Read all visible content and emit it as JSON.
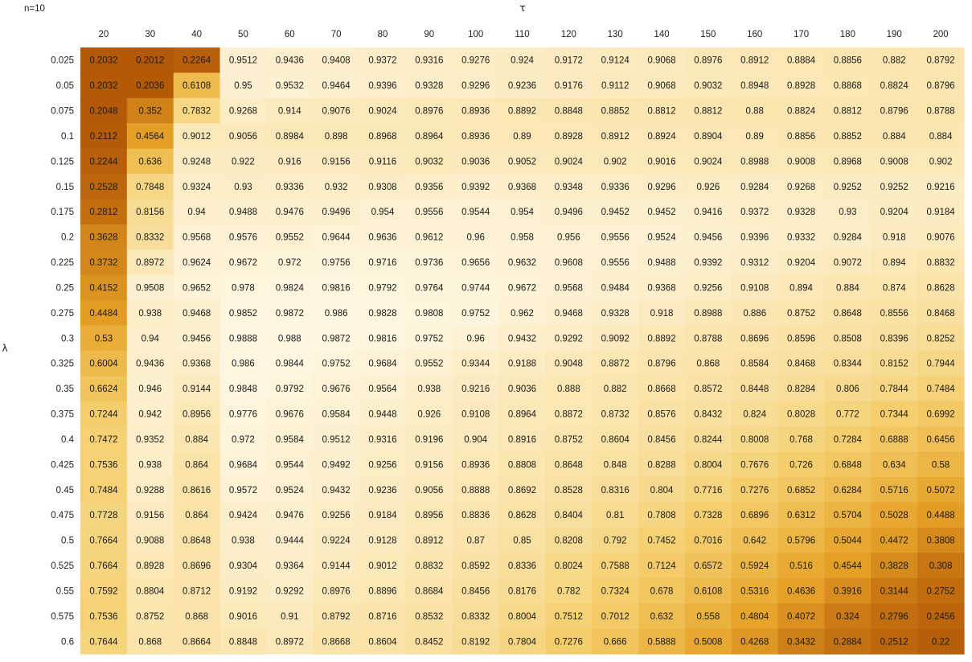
{
  "chart_data": {
    "type": "heatmap",
    "title": "n=10",
    "xlabel": "τ",
    "ylabel": "λ",
    "x": [
      20,
      30,
      40,
      50,
      60,
      70,
      80,
      90,
      100,
      110,
      120,
      130,
      140,
      150,
      160,
      170,
      180,
      190,
      200
    ],
    "x_labels": [
      "20",
      "30",
      "40",
      "50",
      "60",
      "70",
      "80",
      "90",
      "100",
      "110",
      "120",
      "130",
      "140",
      "150",
      "160",
      "170",
      "180",
      "190",
      "200"
    ],
    "y": [
      0.025,
      0.05,
      0.075,
      0.1,
      0.125,
      0.15,
      0.175,
      0.2,
      0.225,
      0.25,
      0.275,
      0.3,
      0.325,
      0.35,
      0.375,
      0.4,
      0.425,
      0.45,
      0.475,
      0.5,
      0.525,
      0.55,
      0.575,
      0.6
    ],
    "y_labels": [
      "0.025",
      "0.05",
      "0.075",
      "0.1",
      "0.125",
      "0.15",
      "0.175",
      "0.2",
      "0.225",
      "0.25",
      "0.275",
      "0.3",
      "0.325",
      "0.35",
      "0.375",
      "0.4",
      "0.425",
      "0.45",
      "0.475",
      "0.5",
      "0.525",
      "0.55",
      "0.575",
      "0.6"
    ],
    "cell_labels": [
      [
        "0.2032",
        "0.2012",
        "0.2264",
        "0.9512",
        "0.9436",
        "0.9408",
        "0.9372",
        "0.9316",
        "0.9276",
        "0.924",
        "0.9172",
        "0.9124",
        "0.9068",
        "0.8976",
        "0.8912",
        "0.8884",
        "0.8856",
        "0.882",
        "0.8792"
      ],
      [
        "0.2032",
        "0.2036",
        "0.6108",
        "0.95",
        "0.9532",
        "0.9464",
        "0.9396",
        "0.9328",
        "0.9296",
        "0.9236",
        "0.9176",
        "0.9112",
        "0.9068",
        "0.9032",
        "0.8948",
        "0.8928",
        "0.8868",
        "0.8824",
        "0.8796"
      ],
      [
        "0.2048",
        "0.352",
        "0.7832",
        "0.9268",
        "0.914",
        "0.9076",
        "0.9024",
        "0.8976",
        "0.8936",
        "0.8892",
        "0.8848",
        "0.8852",
        "0.8812",
        "0.8812",
        "0.88",
        "0.8824",
        "0.8812",
        "0.8796",
        "0.8788"
      ],
      [
        "0.2112",
        "0.4564",
        "0.9012",
        "0.9056",
        "0.8984",
        "0.898",
        "0.8968",
        "0.8964",
        "0.8936",
        "0.89",
        "0.8928",
        "0.8912",
        "0.8924",
        "0.8904",
        "0.89",
        "0.8856",
        "0.8852",
        "0.884",
        "0.884"
      ],
      [
        "0.2244",
        "0.636",
        "0.9248",
        "0.922",
        "0.916",
        "0.9156",
        "0.9116",
        "0.9032",
        "0.9036",
        "0.9052",
        "0.9024",
        "0.902",
        "0.9016",
        "0.9024",
        "0.8988",
        "0.9008",
        "0.8968",
        "0.9008",
        "0.902"
      ],
      [
        "0.2528",
        "0.7848",
        "0.9324",
        "0.93",
        "0.9336",
        "0.932",
        "0.9308",
        "0.9356",
        "0.9392",
        "0.9368",
        "0.9348",
        "0.9336",
        "0.9296",
        "0.926",
        "0.9284",
        "0.9268",
        "0.9252",
        "0.9252",
        "0.9216"
      ],
      [
        "0.2812",
        "0.8156",
        "0.94",
        "0.9488",
        "0.9476",
        "0.9496",
        "0.954",
        "0.9556",
        "0.9544",
        "0.954",
        "0.9496",
        "0.9452",
        "0.9452",
        "0.9416",
        "0.9372",
        "0.9328",
        "0.93",
        "0.9204",
        "0.9184"
      ],
      [
        "0.3628",
        "0.8332",
        "0.9568",
        "0.9576",
        "0.9552",
        "0.9644",
        "0.9636",
        "0.9612",
        "0.96",
        "0.958",
        "0.956",
        "0.9556",
        "0.9524",
        "0.9456",
        "0.9396",
        "0.9332",
        "0.9284",
        "0.918",
        "0.9076"
      ],
      [
        "0.3732",
        "0.8972",
        "0.9624",
        "0.9672",
        "0.972",
        "0.9756",
        "0.9716",
        "0.9736",
        "0.9656",
        "0.9632",
        "0.9608",
        "0.9556",
        "0.9488",
        "0.9392",
        "0.9312",
        "0.9204",
        "0.9072",
        "0.894",
        "0.8832"
      ],
      [
        "0.4152",
        "0.9508",
        "0.9652",
        "0.978",
        "0.9824",
        "0.9816",
        "0.9792",
        "0.9764",
        "0.9744",
        "0.9672",
        "0.9568",
        "0.9484",
        "0.9368",
        "0.9256",
        "0.9108",
        "0.894",
        "0.884",
        "0.874",
        "0.8628"
      ],
      [
        "0.4484",
        "0.938",
        "0.9468",
        "0.9852",
        "0.9872",
        "0.986",
        "0.9828",
        "0.9808",
        "0.9752",
        "0.962",
        "0.9468",
        "0.9328",
        "0.918",
        "0.8988",
        "0.886",
        "0.8752",
        "0.8648",
        "0.8556",
        "0.8468"
      ],
      [
        "0.53",
        "0.94",
        "0.9456",
        "0.9888",
        "0.988",
        "0.9872",
        "0.9816",
        "0.9752",
        "0.96",
        "0.9432",
        "0.9292",
        "0.9092",
        "0.8892",
        "0.8788",
        "0.8696",
        "0.8596",
        "0.8508",
        "0.8396",
        "0.8252"
      ],
      [
        "0.6004",
        "0.9436",
        "0.9368",
        "0.986",
        "0.9844",
        "0.9752",
        "0.9684",
        "0.9552",
        "0.9344",
        "0.9188",
        "0.9048",
        "0.8872",
        "0.8796",
        "0.868",
        "0.8584",
        "0.8468",
        "0.8344",
        "0.8152",
        "0.7944"
      ],
      [
        "0.6624",
        "0.946",
        "0.9144",
        "0.9848",
        "0.9792",
        "0.9676",
        "0.9564",
        "0.938",
        "0.9216",
        "0.9036",
        "0.888",
        "0.882",
        "0.8668",
        "0.8572",
        "0.8448",
        "0.8284",
        "0.806",
        "0.7844",
        "0.7484"
      ],
      [
        "0.7244",
        "0.942",
        "0.8956",
        "0.9776",
        "0.9676",
        "0.9584",
        "0.9448",
        "0.926",
        "0.9108",
        "0.8964",
        "0.8872",
        "0.8732",
        "0.8576",
        "0.8432",
        "0.824",
        "0.8028",
        "0.772",
        "0.7344",
        "0.6992"
      ],
      [
        "0.7472",
        "0.9352",
        "0.884",
        "0.972",
        "0.9584",
        "0.9512",
        "0.9316",
        "0.9196",
        "0.904",
        "0.8916",
        "0.8752",
        "0.8604",
        "0.8456",
        "0.8244",
        "0.8008",
        "0.768",
        "0.7284",
        "0.6888",
        "0.6456"
      ],
      [
        "0.7536",
        "0.938",
        "0.864",
        "0.9684",
        "0.9544",
        "0.9492",
        "0.9256",
        "0.9156",
        "0.8936",
        "0.8808",
        "0.8648",
        "0.848",
        "0.8288",
        "0.8004",
        "0.7676",
        "0.726",
        "0.6848",
        "0.634",
        "0.58"
      ],
      [
        "0.7484",
        "0.9288",
        "0.8616",
        "0.9572",
        "0.9524",
        "0.9432",
        "0.9236",
        "0.9056",
        "0.8888",
        "0.8692",
        "0.8528",
        "0.8316",
        "0.804",
        "0.7716",
        "0.7276",
        "0.6852",
        "0.6284",
        "0.5716",
        "0.5072"
      ],
      [
        "0.7728",
        "0.9156",
        "0.864",
        "0.9424",
        "0.9476",
        "0.9256",
        "0.9184",
        "0.8956",
        "0.8836",
        "0.8628",
        "0.8404",
        "0.81",
        "0.7808",
        "0.7328",
        "0.6896",
        "0.6312",
        "0.5704",
        "0.5028",
        "0.4488"
      ],
      [
        "0.7664",
        "0.9088",
        "0.8648",
        "0.938",
        "0.9444",
        "0.9224",
        "0.9128",
        "0.8912",
        "0.87",
        "0.85",
        "0.8208",
        "0.792",
        "0.7452",
        "0.7016",
        "0.642",
        "0.5796",
        "0.5044",
        "0.4472",
        "0.3808"
      ],
      [
        "0.7664",
        "0.8928",
        "0.8696",
        "0.9304",
        "0.9364",
        "0.9144",
        "0.9012",
        "0.8832",
        "0.8592",
        "0.8336",
        "0.8024",
        "0.7588",
        "0.7124",
        "0.6572",
        "0.5924",
        "0.516",
        "0.4544",
        "0.3828",
        "0.308"
      ],
      [
        "0.7592",
        "0.8804",
        "0.8712",
        "0.9192",
        "0.9292",
        "0.8976",
        "0.8896",
        "0.8684",
        "0.8456",
        "0.8176",
        "0.782",
        "0.7324",
        "0.678",
        "0.6108",
        "0.5316",
        "0.4636",
        "0.3916",
        "0.3144",
        "0.2752"
      ],
      [
        "0.7536",
        "0.8752",
        "0.868",
        "0.9016",
        "0.91",
        "0.8792",
        "0.8716",
        "0.8532",
        "0.8332",
        "0.8004",
        "0.7512",
        "0.7012",
        "0.632",
        "0.558",
        "0.4804",
        "0.4072",
        "0.324",
        "0.2796",
        "0.2456"
      ],
      [
        "0.7644",
        "0.868",
        "0.8664",
        "0.8848",
        "0.8972",
        "0.8668",
        "0.8604",
        "0.8452",
        "0.8192",
        "0.7804",
        "0.7276",
        "0.666",
        "0.5888",
        "0.5008",
        "0.4268",
        "0.3432",
        "0.2884",
        "0.2512",
        "0.22"
      ]
    ],
    "value_range": [
      0.2,
      1.0
    ],
    "color_scale": [
      "#b35806",
      "#e6a227",
      "#f5cf6e",
      "#fff8e6"
    ],
    "grid": false,
    "legend": "none"
  }
}
